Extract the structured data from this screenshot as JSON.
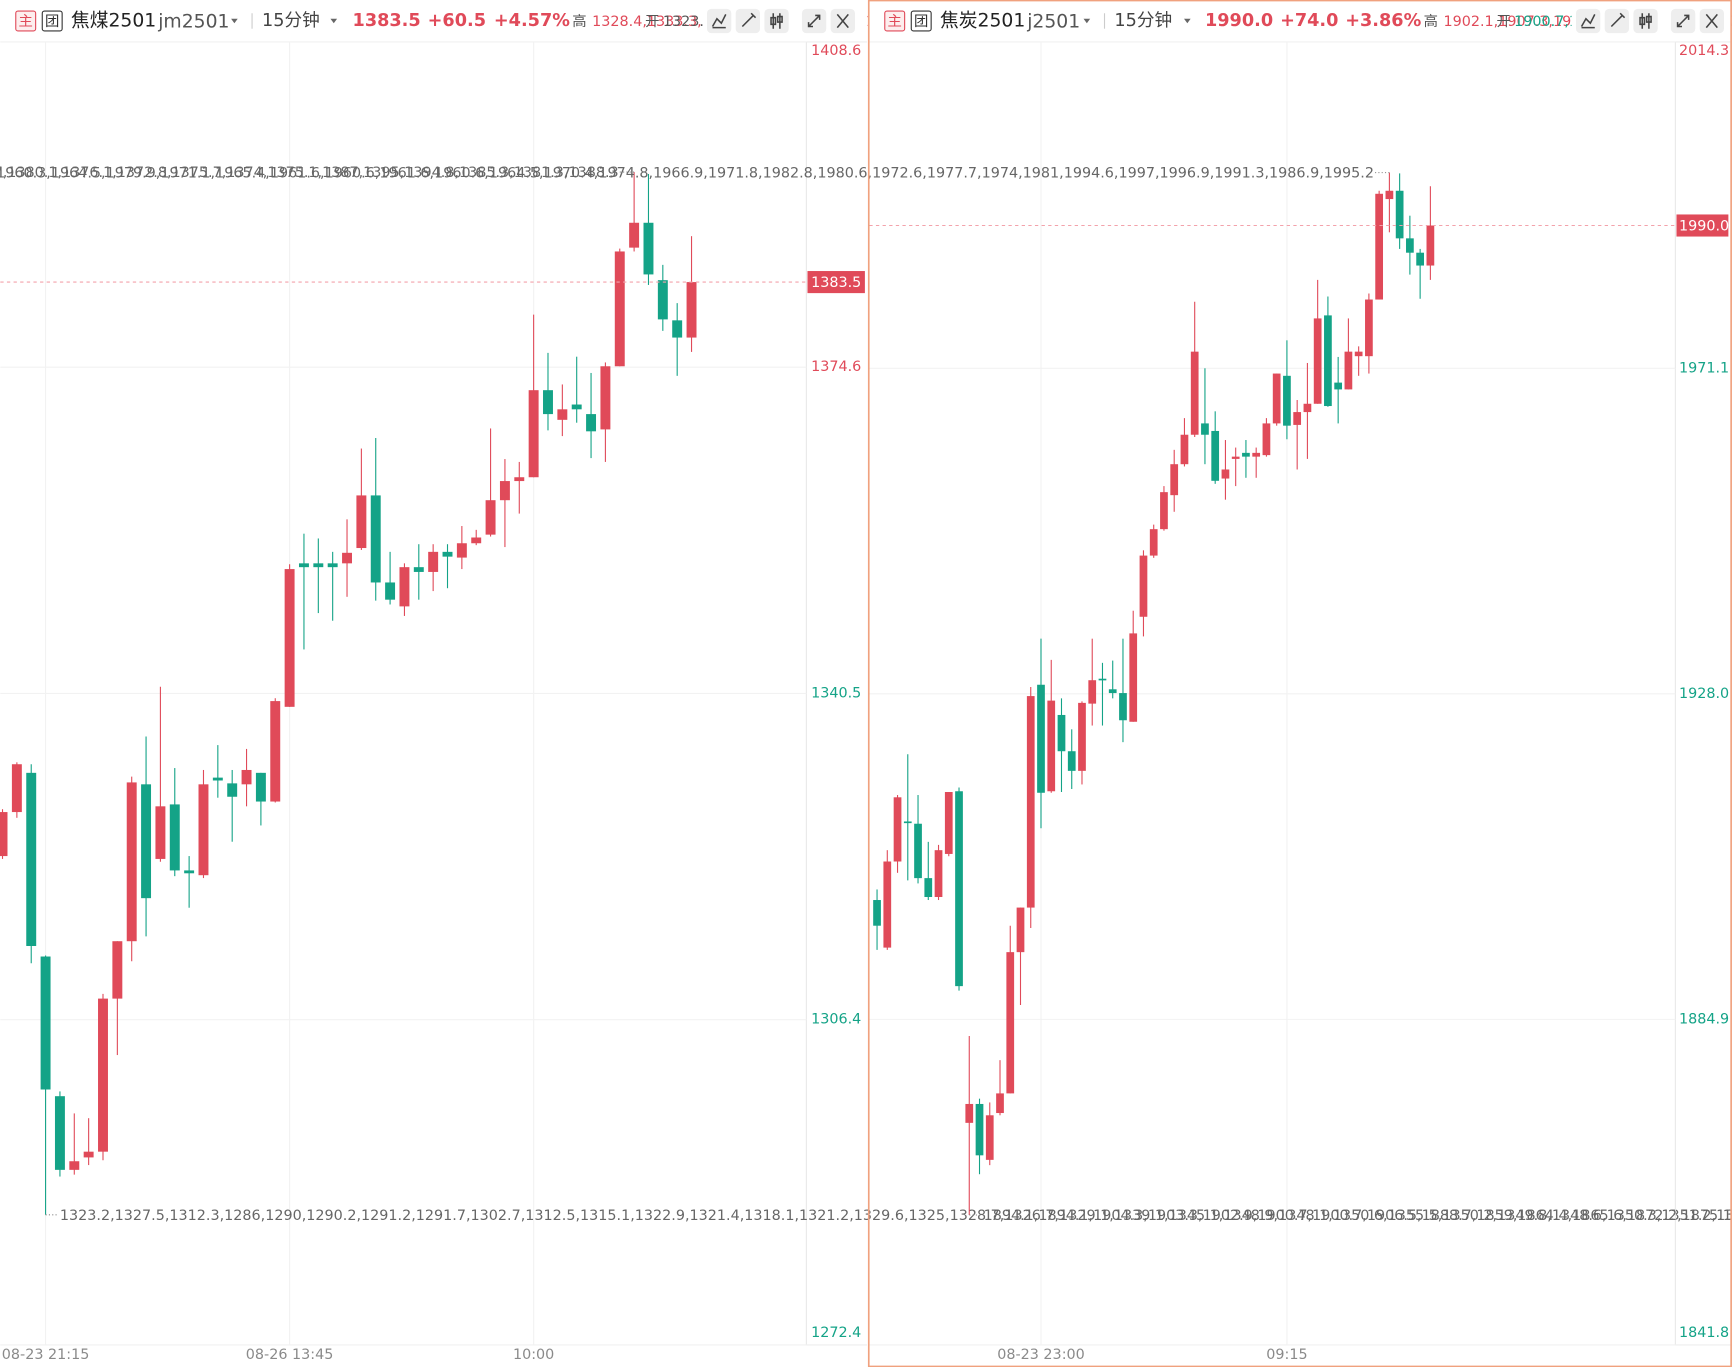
{
  "chart_data": [
    {
      "type": "candlestick",
      "icon_main": "主",
      "icon_group": "团",
      "symbol_name": "焦煤2501",
      "symbol_code": "jm2501",
      "period": "15分钟",
      "price": "1383.5",
      "change": "+60.5",
      "change_pct": "+4.57%",
      "high_label": "高",
      "high": [
        1328.4,
        1333.3,
        1333.1,
        1313.1,
        1298.9,
        1296.6,
        1296.1,
        1309.1,
        1314.6,
        1331.8,
        1336.0,
        1341.2,
        1332.7,
        1323.5,
        1332.5,
        1335.1,
        1332.5,
        1334.7,
        1332.2,
        1340.0,
        1354.0,
        1357.2,
        1356.7,
        1355.3,
        1358.7,
        1366.1,
        1367.2,
        1355.3,
        1354.1,
        1356.1,
        1356.1,
        1356.1,
        1358.0,
        1357.6,
        1368.2,
        1365.0,
        1364.7,
        1380.1,
        1376.1,
        1372.8,
        1375.7,
        1374.0,
        1375.1,
        1387.0,
        1395.0,
        1394.8,
        1385.3,
        1381.3,
        1388.3
      ],
      "open_label": "开",
      "open": [
        1323.5,
        1328.1,
        1332.2,
        1313.0,
        1298.4,
        1290.7,
        1292.0,
        1292.6,
        1308.6,
        1314.6,
        1331.0,
        1323.2,
        1328.9,
        1322.0,
        1321.5,
        1331.7,
        1331.1,
        1331.0,
        1332.2,
        1329.2,
        1339.1,
        1354.1,
        1354.1,
        1354.1,
        1354.1,
        1355.7,
        1361.2,
        1352.1,
        1349.6,
        1353.7,
        1353.2,
        1355.3,
        1354.7,
        1356.2,
        1357.1,
        1360.7,
        1362.7,
        1363.1,
        1372.2,
        1369.1,
        1370.7,
        1369.7,
        1368.1,
        1374.7,
        1387.1,
        1389.7,
        1383.7,
        1379.5,
        1377.7
      ],
      "low": [
        1323.2,
        1327.5,
        1312.3,
        1286.0,
        1290.0,
        1290.2,
        1291.2,
        1291.7,
        1302.7,
        1312.5,
        1315.1,
        1322.9,
        1321.4,
        1318.1,
        1321.2,
        1329.6,
        1325.0,
        1328.7,
        1326.7,
        1329.1,
        1339.1,
        1345.1,
        1348.9,
        1348.1,
        1350.6,
        1355.5,
        1350.2,
        1349.8,
        1348.6,
        1350.3,
        1351.2,
        1351.5,
        1353.5,
        1356.0,
        1356.9,
        1355.8,
        1359.3,
        1363.1,
        1368.0,
        1367.4,
        1368.8,
        1365.1,
        1364.7,
        1374.7,
        1386.7,
        1383.2,
        1378.4,
        1373.7,
        1376.2
      ],
      "up_color": "#e04a59",
      "down_color": "#14a387",
      "ylim": [
        1272.4,
        1408.6
      ],
      "yticks": [
        1408.6,
        1374.6,
        1340.5,
        1306.4,
        1272.4
      ],
      "ytick_colors": [
        "#e04a59",
        "#e04a59",
        "#14a387",
        "#14a387",
        "#14a387"
      ],
      "categories": [
        null,
        null,
        null,
        "08-23 21:15",
        null,
        null,
        null,
        null,
        null,
        null,
        null,
        null,
        null,
        null,
        null,
        null,
        null,
        null,
        null,
        null,
        "08-26 13:45",
        null,
        null,
        null,
        null,
        null,
        null,
        null,
        null,
        null,
        null,
        null,
        null,
        null,
        null,
        null,
        null,
        "10:00",
        null,
        null,
        null,
        null,
        null,
        null,
        null,
        null,
        null,
        null,
        null
      ],
      "close": [
        1328.1,
        1333.1,
        1314.1,
        1299.1,
        1290.7,
        1291.6,
        1292.6,
        1308.6,
        1314.6,
        1331.2,
        1319.1,
        1328.7,
        1322.0,
        1321.7,
        1331.0,
        1331.4,
        1329.7,
        1332.5,
        1329.2,
        1339.7,
        1353.5,
        1353.7,
        1353.7,
        1353.7,
        1355.2,
        1361.2,
        1352.1,
        1350.3,
        1353.7,
        1353.2,
        1355.3,
        1354.8,
        1356.2,
        1356.8,
        1360.7,
        1362.7,
        1363.1,
        1372.2,
        1369.7,
        1370.2,
        1370.2,
        1367.9,
        1374.7,
        1386.7,
        1389.7,
        1384.3,
        1379.6,
        1377.7,
        1383.5
      ]
    },
    {
      "type": "candlestick",
      "icon_main": "主",
      "icon_group": "团",
      "symbol_name": "焦炭2501",
      "symbol_code": "j2501",
      "period": "15分钟",
      "price": "1990.0",
      "change": "+74.0",
      "change_pct": "+3.86%",
      "high_label": "高",
      "high": [
        1902.1,
        1907.3,
        1914.6,
        1920.0,
        1914.6,
        1908.4,
        1908.0,
        1915.0,
        1915.6,
        1882.7,
        1874.4,
        1873.9,
        1879.5,
        1897.3,
        1899.7,
        1928.9,
        1935.3,
        1932.5,
        1927.4,
        1923.3,
        1927.0,
        1935.3,
        1932.1,
        1932.4,
        1935.3,
        1939.0,
        1947.0,
        1950.4,
        1955.5,
        1960.3,
        1964.5,
        1979.9,
        1971.1,
        1965.4,
        1961.6,
        1960.6,
        1961.6,
        1960.6,
        1964.5,
        1970.4,
        1974.8,
        1966.9,
        1971.8,
        1982.8,
        1980.6,
        1972.6,
        1977.7,
        1974.0,
        1981.0,
        1994.6,
        1997.0,
        1996.9,
        1991.3,
        1986.9,
        1995.2
      ],
      "open_label": "开",
      "open": [
        1900.7,
        1894.4,
        1905.8,
        1911.1,
        1910.8,
        1903.6,
        1901.1,
        1906.8,
        1915.1,
        1871.2,
        1873.7,
        1866.3,
        1872.5,
        1875.1,
        1893.8,
        1899.7,
        1929.2,
        1915.1,
        1925.2,
        1920.4,
        1917.8,
        1926.7,
        1930.0,
        1928.6,
        1928.1,
        1924.3,
        1938.2,
        1946.3,
        1949.8,
        1954.3,
        1958.4,
        1962.3,
        1963.8,
        1962.8,
        1956.5,
        1959.1,
        1959.9,
        1959.4,
        1959.6,
        1963.8,
        1970.1,
        1963.6,
        1965.3,
        1966.4,
        1978.1,
        1969.2,
        1968.3,
        1972.7,
        1972.7,
        1980.2,
        1993.5,
        1994.6,
        1988.3,
        1986.4,
        1984.7
      ],
      "low": [
        1894.1,
        1894.1,
        1904.3,
        1903.3,
        1902.9,
        1900.7,
        1900.7,
        1906.5,
        1888.7,
        1859.0,
        1864.4,
        1865.6,
        1872.2,
        1875.1,
        1886.8,
        1897.0,
        1910.2,
        1914.9,
        1915.0,
        1915.4,
        1916.0,
        1923.8,
        1923.8,
        1927.4,
        1921.6,
        1924.3,
        1935.6,
        1946.0,
        1949.6,
        1952.1,
        1958.1,
        1962.0,
        1958.4,
        1955.8,
        1953.7,
        1955.5,
        1956.6,
        1956.6,
        1959.4,
        1963.5,
        1961.7,
        1957.7,
        1959.1,
        1966.4,
        1966.0,
        1963.8,
        1968.3,
        1970.1,
        1970.4,
        1980.2,
        1989.1,
        1986.9,
        1983.5,
        1980.3,
        1982.8
      ],
      "up_color": "#e04a59",
      "down_color": "#14a387",
      "ylim": [
        1841.8,
        2014.3
      ],
      "yticks": [
        2014.3,
        1971.1,
        {
          "value": 1928,
          "label": "1928.0"
        },
        1884.9,
        1841.8
      ],
      "ytick_colors": [
        "#e04a59",
        "#14a387",
        "#14a387",
        "#14a387",
        "#14a387"
      ],
      "categories": [
        null,
        null,
        null,
        null,
        null,
        null,
        null,
        null,
        null,
        null,
        null,
        null,
        null,
        null,
        null,
        null,
        "08-23 23:00",
        null,
        null,
        null,
        null,
        null,
        null,
        null,
        null,
        null,
        null,
        null,
        null,
        null,
        null,
        null,
        null,
        null,
        null,
        null,
        null,
        null,
        null,
        null,
        "09:15",
        null,
        null,
        null,
        null,
        null,
        null,
        null,
        null,
        null,
        null,
        null,
        null,
        null,
        null
      ],
      "close": [
        1897.3,
        1905.8,
        1914.3,
        1910.9,
        1903.6,
        1901.1,
        1907.3,
        1915.0,
        1889.3,
        1873.7,
        1866.9,
        1872.2,
        1875.1,
        1893.8,
        1899.7,
        1927.7,
        1914.9,
        1927.1,
        1920.4,
        1917.8,
        1926.8,
        1929.8,
        1929.8,
        1928.1,
        1924.5,
        1936.0,
        1946.3,
        1949.8,
        1954.7,
        1958.4,
        1962.3,
        1973.3,
        1962.3,
        1956.2,
        1957.7,
        1959.4,
        1959.4,
        1959.9,
        1963.8,
        1970.4,
        1963.5,
        1965.3,
        1966.4,
        1977.7,
        1966.1,
        1968.3,
        1973.3,
        1973.3,
        1980.2,
        1994.2,
        1994.6,
        1988.3,
        1986.4,
        1984.7,
        1990.0
      ]
    }
  ]
}
